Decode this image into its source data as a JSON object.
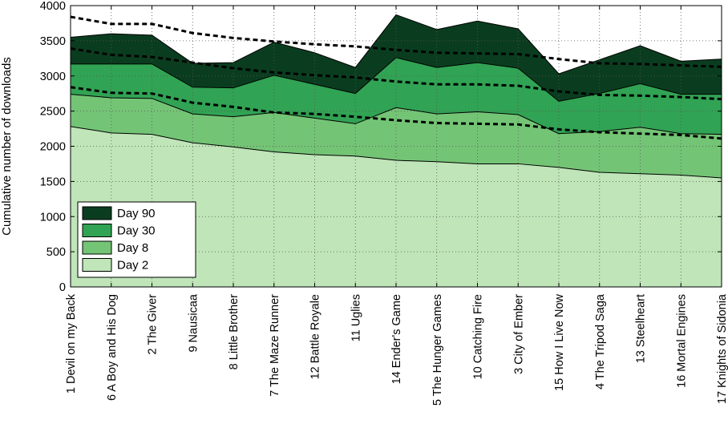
{
  "chart_data": {
    "type": "area",
    "stacked": true,
    "ylabel": "Cumulative number of downloads",
    "xlabel": "",
    "ylim": [
      0,
      4000
    ],
    "yticks": [
      0,
      500,
      1000,
      1500,
      2000,
      2500,
      3000,
      3500,
      4000
    ],
    "grid": true,
    "legend_position": "bottom-left",
    "categories": [
      "1 Devil on my Back",
      "6 A Boy and His Dog",
      "2 The Giver",
      "9 Nausicaa",
      "8 Little Brother",
      "7 The Maze Runner",
      "12 Battle Royale",
      "11 Uglies",
      "14 Ender's Game",
      "5 The Hunger Games",
      "10 Catching Fire",
      "3 City of Ember",
      "15 How I Live Now",
      "4 The Tripod Saga",
      "13 Steelheart",
      "16 Mortal Engines",
      "17 Knights of Sidonia"
    ],
    "series": [
      {
        "name": "Day 2",
        "color": "#bfe5b8",
        "values": [
          2280,
          2190,
          2170,
          2050,
          1990,
          1920,
          1880,
          1860,
          1800,
          1780,
          1750,
          1750,
          1700,
          1630,
          1610,
          1590,
          1550
        ]
      },
      {
        "name": "Day 8",
        "color": "#74c476",
        "values": [
          2740,
          2690,
          2680,
          2460,
          2420,
          2480,
          2400,
          2320,
          2550,
          2460,
          2490,
          2450,
          2180,
          2210,
          2270,
          2180,
          2170
        ]
      },
      {
        "name": "Day 30",
        "color": "#31a354",
        "values": [
          3170,
          3170,
          3170,
          2840,
          2830,
          3010,
          2880,
          2750,
          3260,
          3120,
          3190,
          3110,
          2640,
          2750,
          2890,
          2740,
          2740
        ]
      },
      {
        "name": "Day 90",
        "color": "#0a3d1f",
        "values": [
          3550,
          3600,
          3580,
          3180,
          3190,
          3480,
          3330,
          3120,
          3870,
          3660,
          3780,
          3670,
          3030,
          3230,
          3430,
          3210,
          3240
        ]
      }
    ],
    "trendlines": [
      {
        "series": "Day 8",
        "values": [
          2840,
          2760,
          2750,
          2620,
          2560,
          2480,
          2460,
          2420,
          2370,
          2330,
          2320,
          2310,
          2240,
          2200,
          2180,
          2160,
          2110
        ]
      },
      {
        "series": "Day 30",
        "values": [
          3390,
          3300,
          3270,
          3190,
          3110,
          3050,
          3010,
          2980,
          2920,
          2880,
          2880,
          2860,
          2780,
          2730,
          2720,
          2700,
          2670
        ]
      },
      {
        "series": "Day 90",
        "values": [
          3840,
          3740,
          3740,
          3610,
          3540,
          3490,
          3450,
          3420,
          3370,
          3330,
          3320,
          3310,
          3240,
          3180,
          3170,
          3150,
          3130
        ]
      }
    ],
    "legend": [
      "Day 90",
      "Day 30",
      "Day 8",
      "Day 2"
    ]
  }
}
